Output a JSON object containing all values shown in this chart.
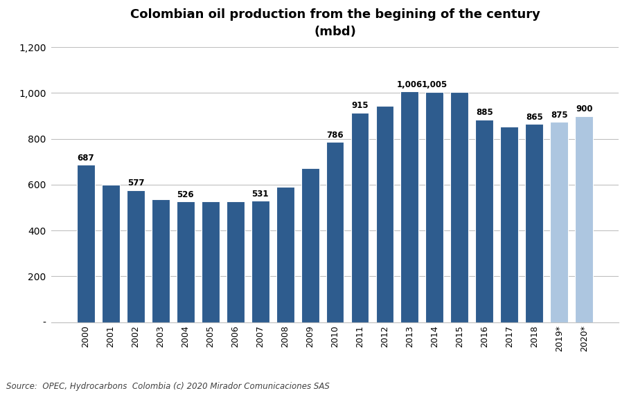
{
  "title": "Colombian oil production from the begining of the century\n(mbd)",
  "years": [
    "2000",
    "2001",
    "2002",
    "2003",
    "2004",
    "2005",
    "2006",
    "2007",
    "2008",
    "2009",
    "2010",
    "2011",
    "2012",
    "2013",
    "2014",
    "2015",
    "2016",
    "2017",
    "2018",
    "2019*",
    "2020*"
  ],
  "values": [
    687,
    601,
    577,
    537,
    526,
    526,
    526,
    531,
    591,
    671,
    786,
    915,
    944,
    1006,
    1005,
    1005,
    885,
    854,
    865,
    875,
    900
  ],
  "bar_colors": [
    "#2E5C8E",
    "#2E5C8E",
    "#2E5C8E",
    "#2E5C8E",
    "#2E5C8E",
    "#2E5C8E",
    "#2E5C8E",
    "#2E5C8E",
    "#2E5C8E",
    "#2E5C8E",
    "#2E5C8E",
    "#2E5C8E",
    "#2E5C8E",
    "#2E5C8E",
    "#2E5C8E",
    "#2E5C8E",
    "#2E5C8E",
    "#2E5C8E",
    "#2E5C8E",
    "#ADC6E0",
    "#ADC6E0"
  ],
  "label_values": [
    "687",
    "",
    "577",
    "",
    "526",
    "",
    "",
    "531",
    "",
    "",
    "786",
    "915",
    "",
    "1,006",
    "1,005",
    "",
    "885",
    "",
    "865",
    "875",
    "900"
  ],
  "ylim": [
    0,
    1200
  ],
  "yticks": [
    0,
    200,
    400,
    600,
    800,
    1000,
    1200
  ],
  "ytick_labels": [
    "-",
    "200",
    "400",
    "600",
    "800",
    "1,000",
    "1,200"
  ],
  "source_text": "Source:  OPEC, Hydrocarbons  Colombia (c) 2020 Mirador Comunicaciones SAS",
  "background_color": "#FFFFFF",
  "grid_color": "#BFBFBF",
  "title_fontsize": 13,
  "label_fontsize": 8.5,
  "source_fontsize": 8.5,
  "bar_width": 0.72
}
